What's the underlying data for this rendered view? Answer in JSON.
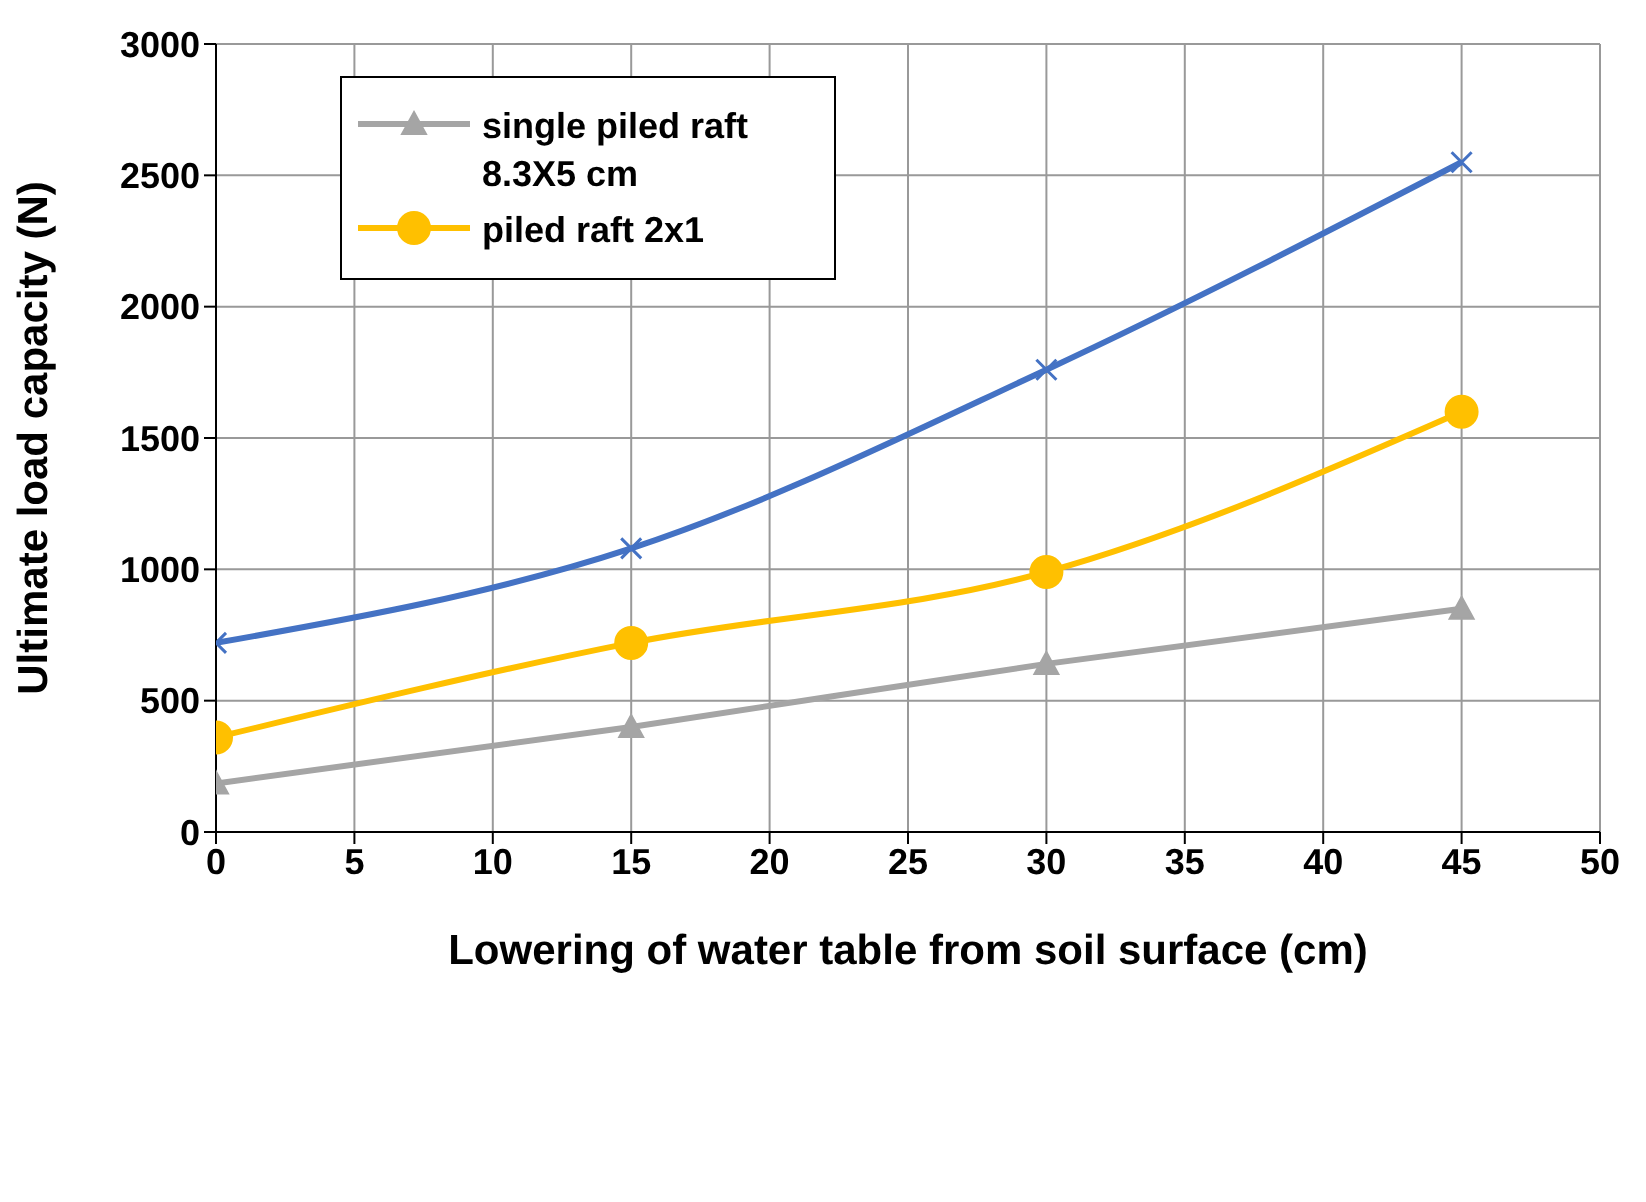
{
  "chart_data": {
    "type": "line",
    "xlabel": "Lowering of water table from soil surface (cm)",
    "ylabel": "Ultimate load capacity (N)",
    "x": [
      0,
      15,
      30,
      45
    ],
    "series": [
      {
        "color": "#4472c4",
        "values": [
          720,
          1080,
          1760,
          2550
        ],
        "marker": "cross"
      },
      {
        "name": "single piled raft 8.3X5 cm",
        "color": "#a5a5a5",
        "values": [
          185,
          400,
          640,
          850
        ],
        "marker": "triangle"
      },
      {
        "name": "piled raft 2x1",
        "color": "#ffc000",
        "values": [
          360,
          720,
          990,
          1600
        ],
        "marker": "circle"
      }
    ],
    "xlim": [
      0,
      50
    ],
    "xticks": [
      0,
      5,
      10,
      15,
      20,
      25,
      30,
      35,
      40,
      45,
      50
    ],
    "ylim": [
      0,
      3000
    ],
    "yticks": [
      0,
      500,
      1000,
      1500,
      2000,
      2500,
      3000
    ],
    "grid": true,
    "legend": "top left",
    "line_style": "solid"
  }
}
